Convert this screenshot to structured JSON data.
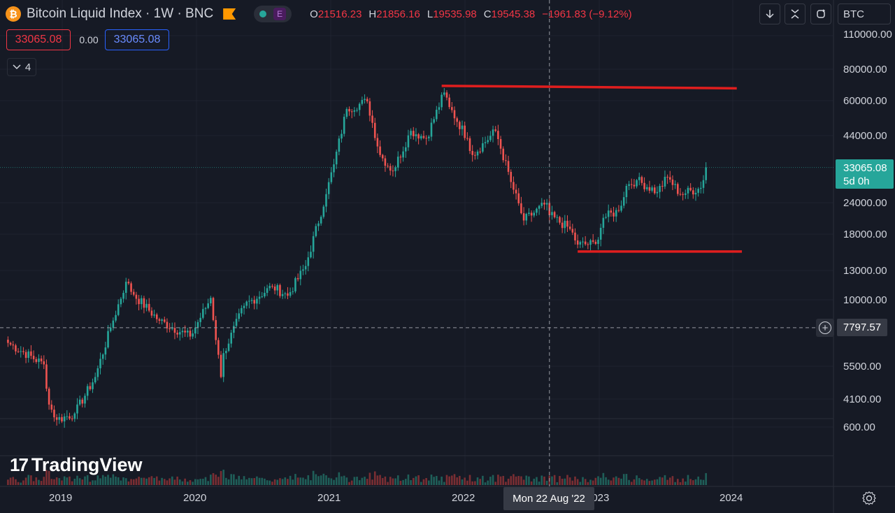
{
  "header": {
    "symbol": "Bitcoin Liquid Index · 1W · BNC",
    "icon": "bitcoin-icon",
    "badge": "E",
    "ohlc": {
      "o_label": "O",
      "o_value": "21516.23",
      "h_label": "H",
      "h_value": "21856.16",
      "l_label": "L",
      "l_value": "19535.98",
      "c_label": "C",
      "c_value": "19545.38",
      "change": "−1961.83 (−9.12%)"
    }
  },
  "trade": {
    "sell": "33065.08",
    "spread": "0.00",
    "buy": "33065.08"
  },
  "indicators": {
    "count": "4"
  },
  "toolbar": {
    "currency": "BTC"
  },
  "price_axis": {
    "labels": [
      "110000.00",
      "80000.00",
      "60000.00",
      "44000.00",
      "24000.00",
      "18000.00",
      "13000.00",
      "10000.00",
      "5500.00",
      "4100.00",
      "600.00"
    ],
    "last_price": "33065.08",
    "countdown": "5d 0h",
    "crosshair_price": "7797.57"
  },
  "time_axis": {
    "labels": [
      "2019",
      "2020",
      "2021",
      "2022",
      "2023",
      "2024"
    ],
    "crosshair_date": "Mon 22 Aug '22"
  },
  "brand": {
    "name": "TradingView"
  },
  "colors": {
    "up": "#26a69a",
    "down": "#ef5350",
    "trendline": "#e01e1e",
    "background": "#161a25"
  },
  "chart_data": {
    "type": "candlestick",
    "scale": "log",
    "interval": "1W",
    "ylim": [
      3000,
      110000
    ],
    "xlim": [
      "2018-07",
      "2024-03"
    ],
    "ohlc_close_anchors": [
      [
        "2018-08-06",
        6800
      ],
      [
        "2018-11-12",
        5600
      ],
      [
        "2018-11-26",
        3900
      ],
      [
        "2018-12-17",
        3400
      ],
      [
        "2019-02-04",
        3600
      ],
      [
        "2019-04-01",
        5000
      ],
      [
        "2019-05-13",
        7800
      ],
      [
        "2019-06-24",
        11800
      ],
      [
        "2019-07-15",
        10500
      ],
      [
        "2019-09-23",
        8300
      ],
      [
        "2019-12-16",
        7200
      ],
      [
        "2020-02-10",
        10200
      ],
      [
        "2020-03-09",
        5000
      ],
      [
        "2020-03-16",
        6200
      ],
      [
        "2020-05-11",
        9500
      ],
      [
        "2020-07-27",
        11300
      ],
      [
        "2020-09-07",
        10400
      ],
      [
        "2020-10-26",
        13600
      ],
      [
        "2020-12-21",
        26000
      ],
      [
        "2021-01-11",
        34000
      ],
      [
        "2021-02-15",
        56000
      ],
      [
        "2021-04-12",
        60000
      ],
      [
        "2021-05-17",
        37000
      ],
      [
        "2021-06-21",
        32000
      ],
      [
        "2021-08-09",
        46000
      ],
      [
        "2021-09-20",
        43000
      ],
      [
        "2021-11-08",
        65000
      ],
      [
        "2021-11-22",
        57000
      ],
      [
        "2022-01-10",
        43000
      ],
      [
        "2022-01-24",
        37000
      ],
      [
        "2022-03-28",
        46000
      ],
      [
        "2022-05-09",
        29000
      ],
      [
        "2022-06-13",
        20500
      ],
      [
        "2022-08-15",
        24000
      ],
      [
        "2022-08-22",
        21500
      ],
      [
        "2022-10-17",
        19000
      ],
      [
        "2022-11-07",
        16500
      ],
      [
        "2022-12-26",
        16600
      ],
      [
        "2023-01-16",
        21000
      ],
      [
        "2023-02-27",
        22400
      ],
      [
        "2023-03-20",
        28000
      ],
      [
        "2023-04-17",
        29500
      ],
      [
        "2023-06-12",
        26500
      ],
      [
        "2023-07-10",
        30300
      ],
      [
        "2023-08-14",
        26000
      ],
      [
        "2023-10-09",
        27500
      ],
      [
        "2023-10-23",
        33065.08
      ]
    ],
    "horizontal_lines": [
      {
        "from": "2021-11-01",
        "to": "2024-01-15",
        "y1": 69000,
        "y2": 67500
      },
      {
        "from": "2022-11-07",
        "to": "2024-01-29",
        "y1": 15500,
        "y2": 15500
      }
    ],
    "crosshair": {
      "date": "2022-08-22",
      "price": 7797.57
    }
  }
}
